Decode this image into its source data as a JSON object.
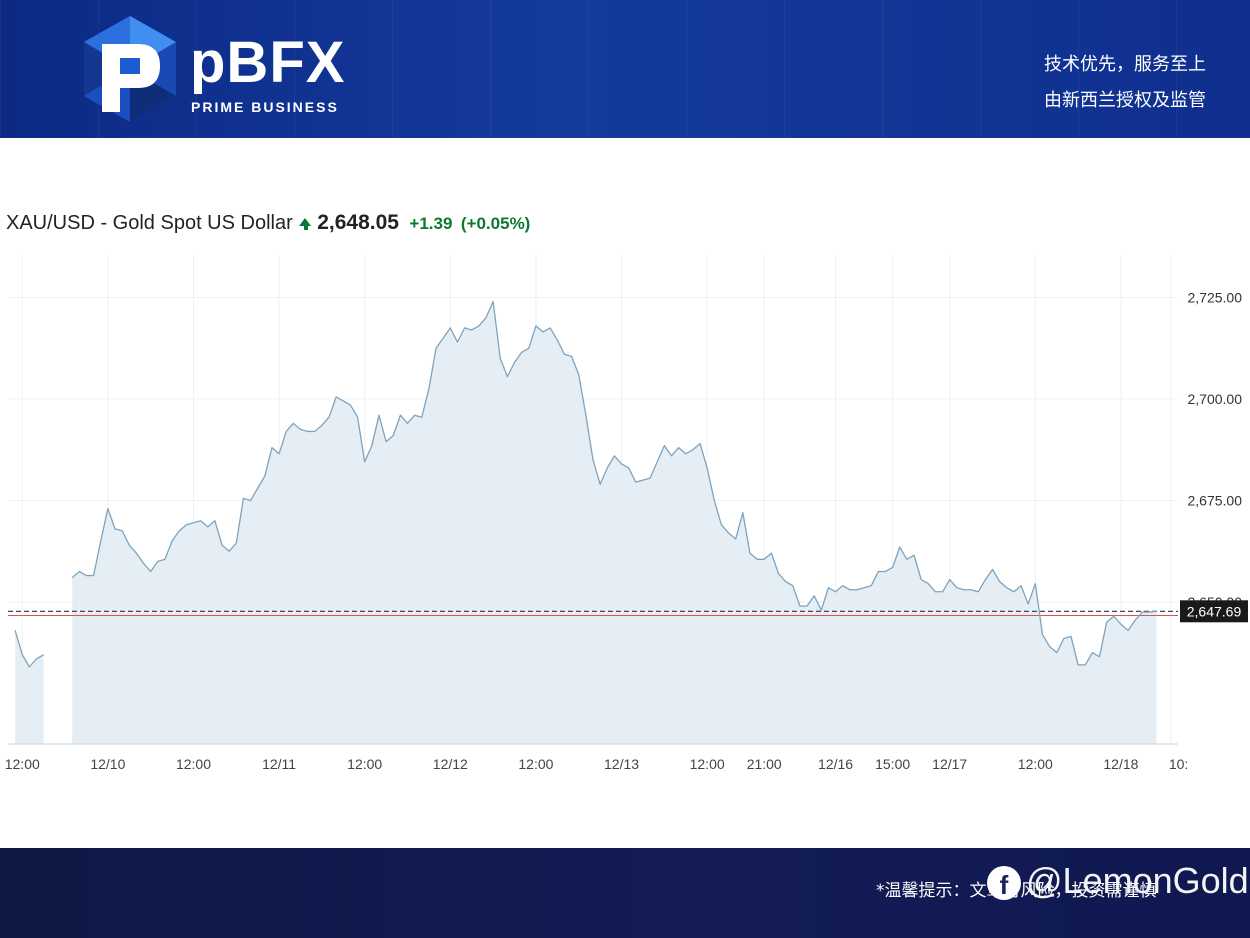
{
  "header": {
    "logo_text": "pBFX",
    "logo_sub": "PRIME BUSINESS",
    "slogan_1": "技术优先，服务至上",
    "slogan_2": "由新西兰授权及监管"
  },
  "quote": {
    "symbol": "XAU/USD - Gold Spot US Dollar",
    "last": "2,648.05",
    "change": "+1.39",
    "change_pct": "(+0.05%)",
    "direction_icon": "up-arrow-icon",
    "up_color": "#0c7a2e"
  },
  "footer": {
    "note": "*温馨提示：文章有风险，投资需谨慎",
    "social_icon": "facebook-icon",
    "handle": "@LemonGold"
  },
  "chart_data": {
    "type": "area",
    "ylim": [
      2615,
      2733
    ],
    "yticks": [
      2650,
      2675,
      2700,
      2725
    ],
    "ytick_labels": [
      "2,650.00",
      "2,675.00",
      "2,700.00",
      "2,725.00"
    ],
    "xticks": [
      {
        "label": "12:00",
        "x": 0.5
      },
      {
        "label": "12/10",
        "x": 6.5
      },
      {
        "label": "12:00",
        "x": 12.5
      },
      {
        "label": "12/11",
        "x": 18.5
      },
      {
        "label": "12:00",
        "x": 24.5
      },
      {
        "label": "12/12",
        "x": 30.5
      },
      {
        "label": "12:00",
        "x": 36.5
      },
      {
        "label": "12/13",
        "x": 42.5
      },
      {
        "label": "12:00",
        "x": 48.5
      },
      {
        "label": "21:00",
        "x": 52.5
      },
      {
        "label": "12/16",
        "x": 57.5
      },
      {
        "label": "15:00",
        "x": 61.5
      },
      {
        "label": "12/17",
        "x": 65.5
      },
      {
        "label": "12:00",
        "x": 71.5
      },
      {
        "label": "12/18",
        "x": 77.5
      },
      {
        "label": "10:",
        "x": 81
      }
    ],
    "x_domain": [
      -0.5,
      81.5
    ],
    "current_price": 2647.69,
    "current_label": "2,647.69",
    "prev_close": 2646.66,
    "grid": true,
    "line_color": "#7ea3bd",
    "fill_color": "#e6eef5",
    "ref_line_color": "#d9534f",
    "series": [
      {
        "segment": 1,
        "points": [
          [
            0,
            2643
          ],
          [
            0.5,
            2637
          ],
          [
            1,
            2634
          ],
          [
            1.5,
            2636
          ],
          [
            2,
            2637
          ]
        ]
      },
      {
        "segment": 2,
        "points": [
          [
            4,
            2656
          ],
          [
            4.5,
            2657.5
          ],
          [
            5,
            2656.5
          ],
          [
            5.5,
            2656.5
          ],
          [
            6,
            2665
          ],
          [
            6.5,
            2673
          ],
          [
            7,
            2668
          ],
          [
            7.5,
            2667.5
          ],
          [
            8,
            2664
          ],
          [
            8.5,
            2662
          ],
          [
            9,
            2659.5
          ],
          [
            9.5,
            2657.5
          ],
          [
            10,
            2660
          ],
          [
            10.5,
            2660.5
          ],
          [
            11,
            2665
          ],
          [
            11.5,
            2667.5
          ],
          [
            12,
            2669
          ],
          [
            12.5,
            2669.5
          ],
          [
            13,
            2670
          ],
          [
            13.5,
            2668.5
          ],
          [
            14,
            2670
          ],
          [
            14.5,
            2664
          ],
          [
            15,
            2662.5
          ],
          [
            15.5,
            2664.5
          ],
          [
            16,
            2675.5
          ],
          [
            16.5,
            2675
          ],
          [
            17,
            2678
          ],
          [
            17.5,
            2681
          ],
          [
            18,
            2688
          ],
          [
            18.5,
            2686.5
          ],
          [
            19,
            2692
          ],
          [
            19.5,
            2694
          ],
          [
            20,
            2692.5
          ],
          [
            20.5,
            2692
          ],
          [
            21,
            2692
          ],
          [
            21.5,
            2693.5
          ],
          [
            22,
            2695.5
          ],
          [
            22.5,
            2700.5
          ],
          [
            23,
            2699.5
          ],
          [
            23.5,
            2698.5
          ],
          [
            24,
            2695.5
          ],
          [
            24.5,
            2684.5
          ],
          [
            25,
            2688.5
          ],
          [
            25.5,
            2696
          ],
          [
            26,
            2689.5
          ],
          [
            26.5,
            2691
          ],
          [
            27,
            2696
          ],
          [
            27.5,
            2694
          ],
          [
            28,
            2696
          ],
          [
            28.5,
            2695.5
          ],
          [
            29,
            2702.5
          ],
          [
            29.5,
            2712.5
          ],
          [
            30,
            2715
          ],
          [
            30.5,
            2717.5
          ],
          [
            31,
            2714
          ],
          [
            31.5,
            2717.5
          ],
          [
            32,
            2717
          ],
          [
            32.5,
            2718
          ],
          [
            33,
            2720
          ],
          [
            33.5,
            2724
          ],
          [
            34,
            2710
          ],
          [
            34.5,
            2705.5
          ],
          [
            35,
            2709
          ],
          [
            35.5,
            2711.5
          ],
          [
            36,
            2712.5
          ],
          [
            36.5,
            2718
          ],
          [
            37,
            2716.5
          ],
          [
            37.5,
            2717.5
          ],
          [
            38,
            2714.5
          ],
          [
            38.5,
            2711
          ],
          [
            39,
            2710.5
          ],
          [
            39.5,
            2706
          ],
          [
            40,
            2696
          ],
          [
            40.5,
            2685
          ],
          [
            41,
            2679
          ],
          [
            41.5,
            2683
          ],
          [
            42,
            2686
          ],
          [
            42.5,
            2684
          ],
          [
            43,
            2683
          ],
          [
            43.5,
            2679.5
          ],
          [
            44,
            2680
          ],
          [
            44.5,
            2680.5
          ],
          [
            45,
            2684.5
          ],
          [
            45.5,
            2688.5
          ],
          [
            46,
            2686
          ],
          [
            46.5,
            2688
          ],
          [
            47,
            2686.5
          ],
          [
            47.5,
            2687.5
          ],
          [
            48,
            2689
          ],
          [
            48.5,
            2683
          ],
          [
            49,
            2675
          ],
          [
            49.5,
            2669
          ],
          [
            50,
            2667
          ],
          [
            50.5,
            2665.5
          ],
          [
            51,
            2672
          ],
          [
            51.5,
            2662
          ],
          [
            52,
            2660.5
          ],
          [
            52.5,
            2660.5
          ],
          [
            53,
            2662
          ],
          [
            53.5,
            2657
          ],
          [
            54,
            2655
          ],
          [
            54.5,
            2654
          ],
          [
            55,
            2649
          ],
          [
            55.5,
            2649
          ],
          [
            56,
            2651.5
          ],
          [
            56.5,
            2648
          ],
          [
            57,
            2653.5
          ],
          [
            57.5,
            2652.5
          ],
          [
            58,
            2654
          ],
          [
            58.5,
            2653
          ],
          [
            59,
            2653
          ],
          [
            59.5,
            2653.5
          ],
          [
            60,
            2654
          ],
          [
            60.5,
            2657.5
          ],
          [
            61,
            2657.5
          ],
          [
            61.5,
            2658.5
          ],
          [
            62,
            2663.5
          ],
          [
            62.5,
            2660.5
          ],
          [
            63,
            2661.5
          ],
          [
            63.5,
            2655.5
          ],
          [
            64,
            2654.5
          ],
          [
            64.5,
            2652.5
          ],
          [
            65,
            2652.5
          ],
          [
            65.5,
            2655.5
          ],
          [
            66,
            2653.5
          ],
          [
            66.5,
            2653
          ],
          [
            67,
            2653
          ],
          [
            67.5,
            2652.5
          ],
          [
            68,
            2655.5
          ],
          [
            68.5,
            2658
          ],
          [
            69,
            2655
          ],
          [
            69.5,
            2653.5
          ],
          [
            70,
            2652.5
          ],
          [
            70.5,
            2654
          ],
          [
            71,
            2649.5
          ],
          [
            71.5,
            2654.5
          ],
          [
            72,
            2642
          ],
          [
            72.5,
            2639
          ],
          [
            73,
            2637.5
          ],
          [
            73.5,
            2641
          ],
          [
            74,
            2641.5
          ],
          [
            74.5,
            2634.5
          ],
          [
            75,
            2634.5
          ],
          [
            75.5,
            2637.5
          ],
          [
            76,
            2636.5
          ],
          [
            76.5,
            2645
          ],
          [
            77,
            2646.5
          ],
          [
            77.5,
            2644.5
          ],
          [
            78,
            2643
          ],
          [
            78.5,
            2645.5
          ],
          [
            79,
            2647.5
          ],
          [
            79.5,
            2647.5
          ],
          [
            80,
            2647.7
          ]
        ]
      }
    ]
  }
}
